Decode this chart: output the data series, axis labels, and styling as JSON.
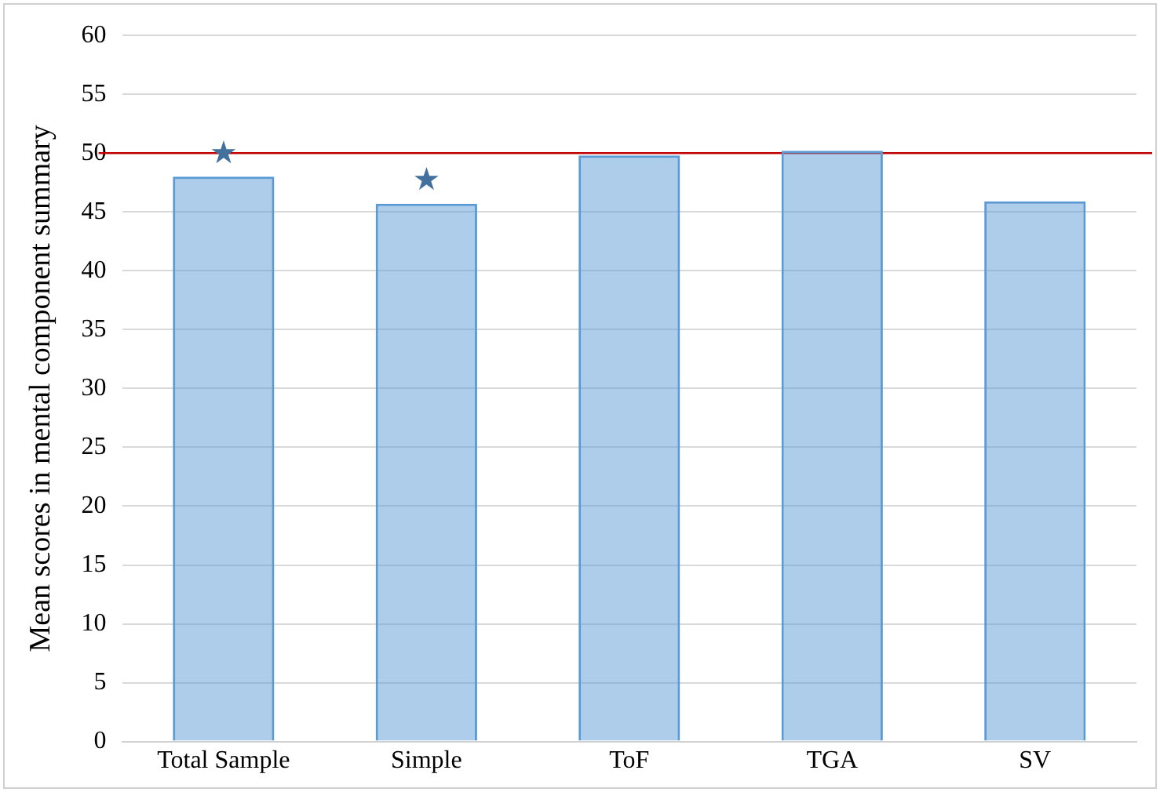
{
  "chart_data": {
    "type": "bar",
    "ylabel": "Mean scores in mental component summary",
    "categories": [
      "Total Sample",
      "Simple",
      "ToF",
      "TGA",
      "SV"
    ],
    "values": [
      48.0,
      45.7,
      49.8,
      50.2,
      45.9
    ],
    "color": "#5b9bd5",
    "ylim": [
      0,
      60
    ],
    "yticks": [
      0,
      5,
      10,
      15,
      20,
      25,
      30,
      35,
      40,
      45,
      50,
      55,
      60
    ],
    "grid": "y",
    "legend": false,
    "ref_lines": [
      {
        "axis": "y",
        "value": 50,
        "color": "#c00000"
      }
    ],
    "annotations": [
      {
        "text": "★",
        "x": "Total Sample",
        "y": 48.0
      },
      {
        "text": "★",
        "x": "Simple",
        "y": 45.7
      }
    ]
  }
}
